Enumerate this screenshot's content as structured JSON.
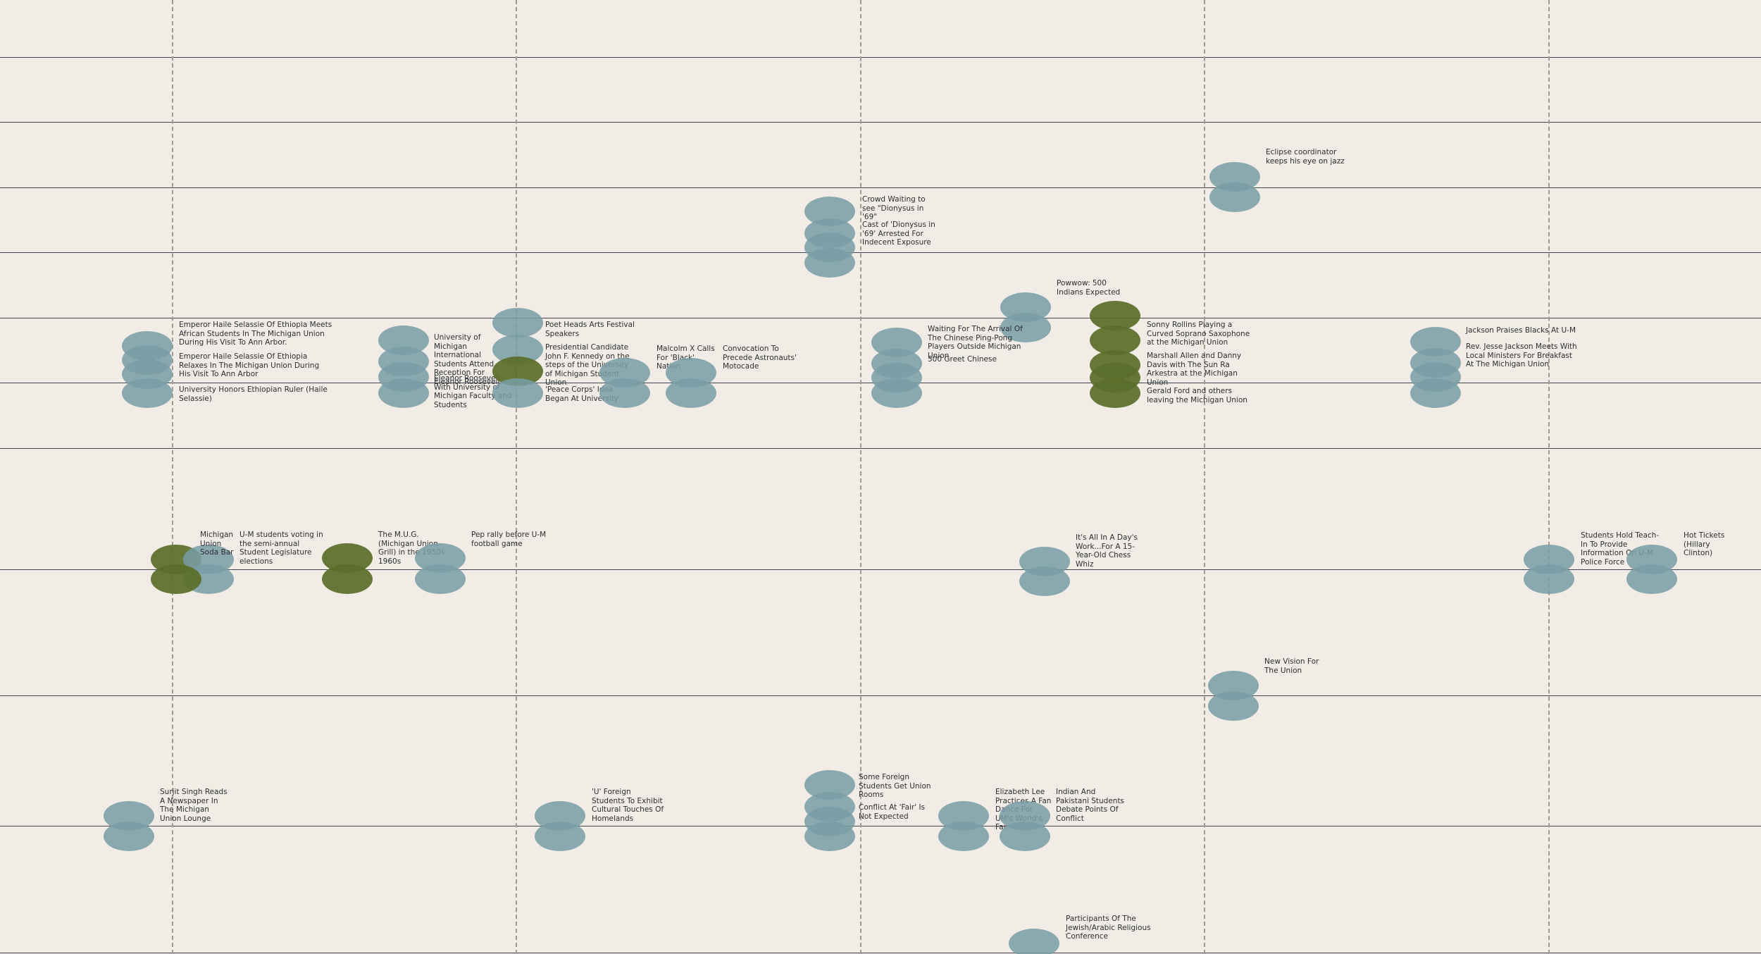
{
  "colors": {
    "background": "#f1ece5",
    "gridline": "#3e4752",
    "dashed_divider": "#a09a93",
    "marker_default": "#799da5",
    "marker_highlight": "#5b6e2a",
    "label_text": "#2a2f35"
  },
  "labels": [
    {
      "id": "eclipse-coordinator",
      "text": "Eclipse coordinator keeps his eye on jazz"
    },
    {
      "id": "crowd-dionysus",
      "text": "Crowd Waiting to see \"Dionysus in '69\""
    },
    {
      "id": "cast-dionysus",
      "text": "Cast of 'Dionysus in '69' Arrested For Indecent Exposure"
    },
    {
      "id": "powwow",
      "text": "Powwow: 500 Indians Expected"
    },
    {
      "id": "haile-meets",
      "text": "Emperor Haile Selassie Of Ethiopia Meets African Students In The Michigan Union During His Visit To Ann Arbor."
    },
    {
      "id": "haile-relaxes",
      "text": "Emperor Haile Selassie Of Ethiopia Relaxes In The Michigan Union During His Visit To Ann Arbor"
    },
    {
      "id": "haile-honors",
      "text": "University Honors Ethiopian Ruler (Haile Selassie)"
    },
    {
      "id": "intl-students-roosevelt",
      "text": "University of Michigan International Students Attend Reception For Eleanor Roosevelt"
    },
    {
      "id": "roosevelt-faculty",
      "text": "Eleanor Roosevelt With University of Michigan Faculty and Students"
    },
    {
      "id": "poet-heads",
      "text": "Poet Heads Arts Festival Speakers"
    },
    {
      "id": "jfk-steps",
      "text": "Presidential Candidate John F. Kennedy on the steps of the University of Michigan Student Union"
    },
    {
      "id": "peace-corps",
      "text": "'Peace Corps' Idea Began At University"
    },
    {
      "id": "malcolm-x",
      "text": "Malcolm X Calls For 'Black' Nation"
    },
    {
      "id": "convocation-astronauts",
      "text": "Convocation To Precede Astronauts' Motocade"
    },
    {
      "id": "ping-pong",
      "text": "Waiting For The Arrival Of The Chinese Ping-Pong Players Outside Michigan Union"
    },
    {
      "id": "greet-chinese",
      "text": "500 Greet Chinese"
    },
    {
      "id": "sonny-rollins",
      "text": "Sonny Rollins Playing a Curved Soprano Saxophone at the Michigan Union"
    },
    {
      "id": "sun-ra",
      "text": "Marshall Allen and Danny Davis with The Sun Ra Arkestra at the Michigan Union"
    },
    {
      "id": "gerald-ford",
      "text": "Gerald Ford and others leaving the Michigan Union"
    },
    {
      "id": "jackson-praises",
      "text": "Jackson Praises Blacks At U-M"
    },
    {
      "id": "jesse-jackson",
      "text": "Rev. Jesse Jackson Meets With Local Ministers For Breakfast At The Michigan Union"
    },
    {
      "id": "soda-bar",
      "text": "Michigan Union Soda Bar"
    },
    {
      "id": "um-voting",
      "text": "U-M students voting in the semi-annual Student Legislature elections"
    },
    {
      "id": "mug",
      "text": "The M.U.G. (Michigan Union Grill) in the 1950s-1960s"
    },
    {
      "id": "pep-rally",
      "text": "Pep rally before U-M football game"
    },
    {
      "id": "chess-whiz",
      "text": "It's All In A Day's Work...For A 15-Year-Old Chess Whiz"
    },
    {
      "id": "teach-in",
      "text": "Students Hold Teach-In To Provide Information On U-M Police Force"
    },
    {
      "id": "hot-tickets",
      "text": "Hot Tickets (Hillary Clinton)"
    },
    {
      "id": "new-vision",
      "text": "New Vision For The Union"
    },
    {
      "id": "surjit-singh",
      "text": "Surjit Singh Reads A Newspaper In The Michigan Union Lounge"
    },
    {
      "id": "foreign-students-exhibit",
      "text": "'U' Foreign Students To Exhibit Cultural Touches Of Homelands"
    },
    {
      "id": "foreign-students-rooms",
      "text": "Some Foreign Students Get Union Rooms"
    },
    {
      "id": "conflict-fair",
      "text": "Conflict At 'Fair' Is Not Expected"
    },
    {
      "id": "elizabeth-lee",
      "text": "Elizabeth Lee Practices A Fan Dance For UM's World's Fair"
    },
    {
      "id": "indian-pakistani",
      "text": "Indian And Pakistani Students Debate Points Of Conflict"
    },
    {
      "id": "jewish-arabic",
      "text": "Participants Of The Jewish/Arabic Religious Conference"
    }
  ]
}
